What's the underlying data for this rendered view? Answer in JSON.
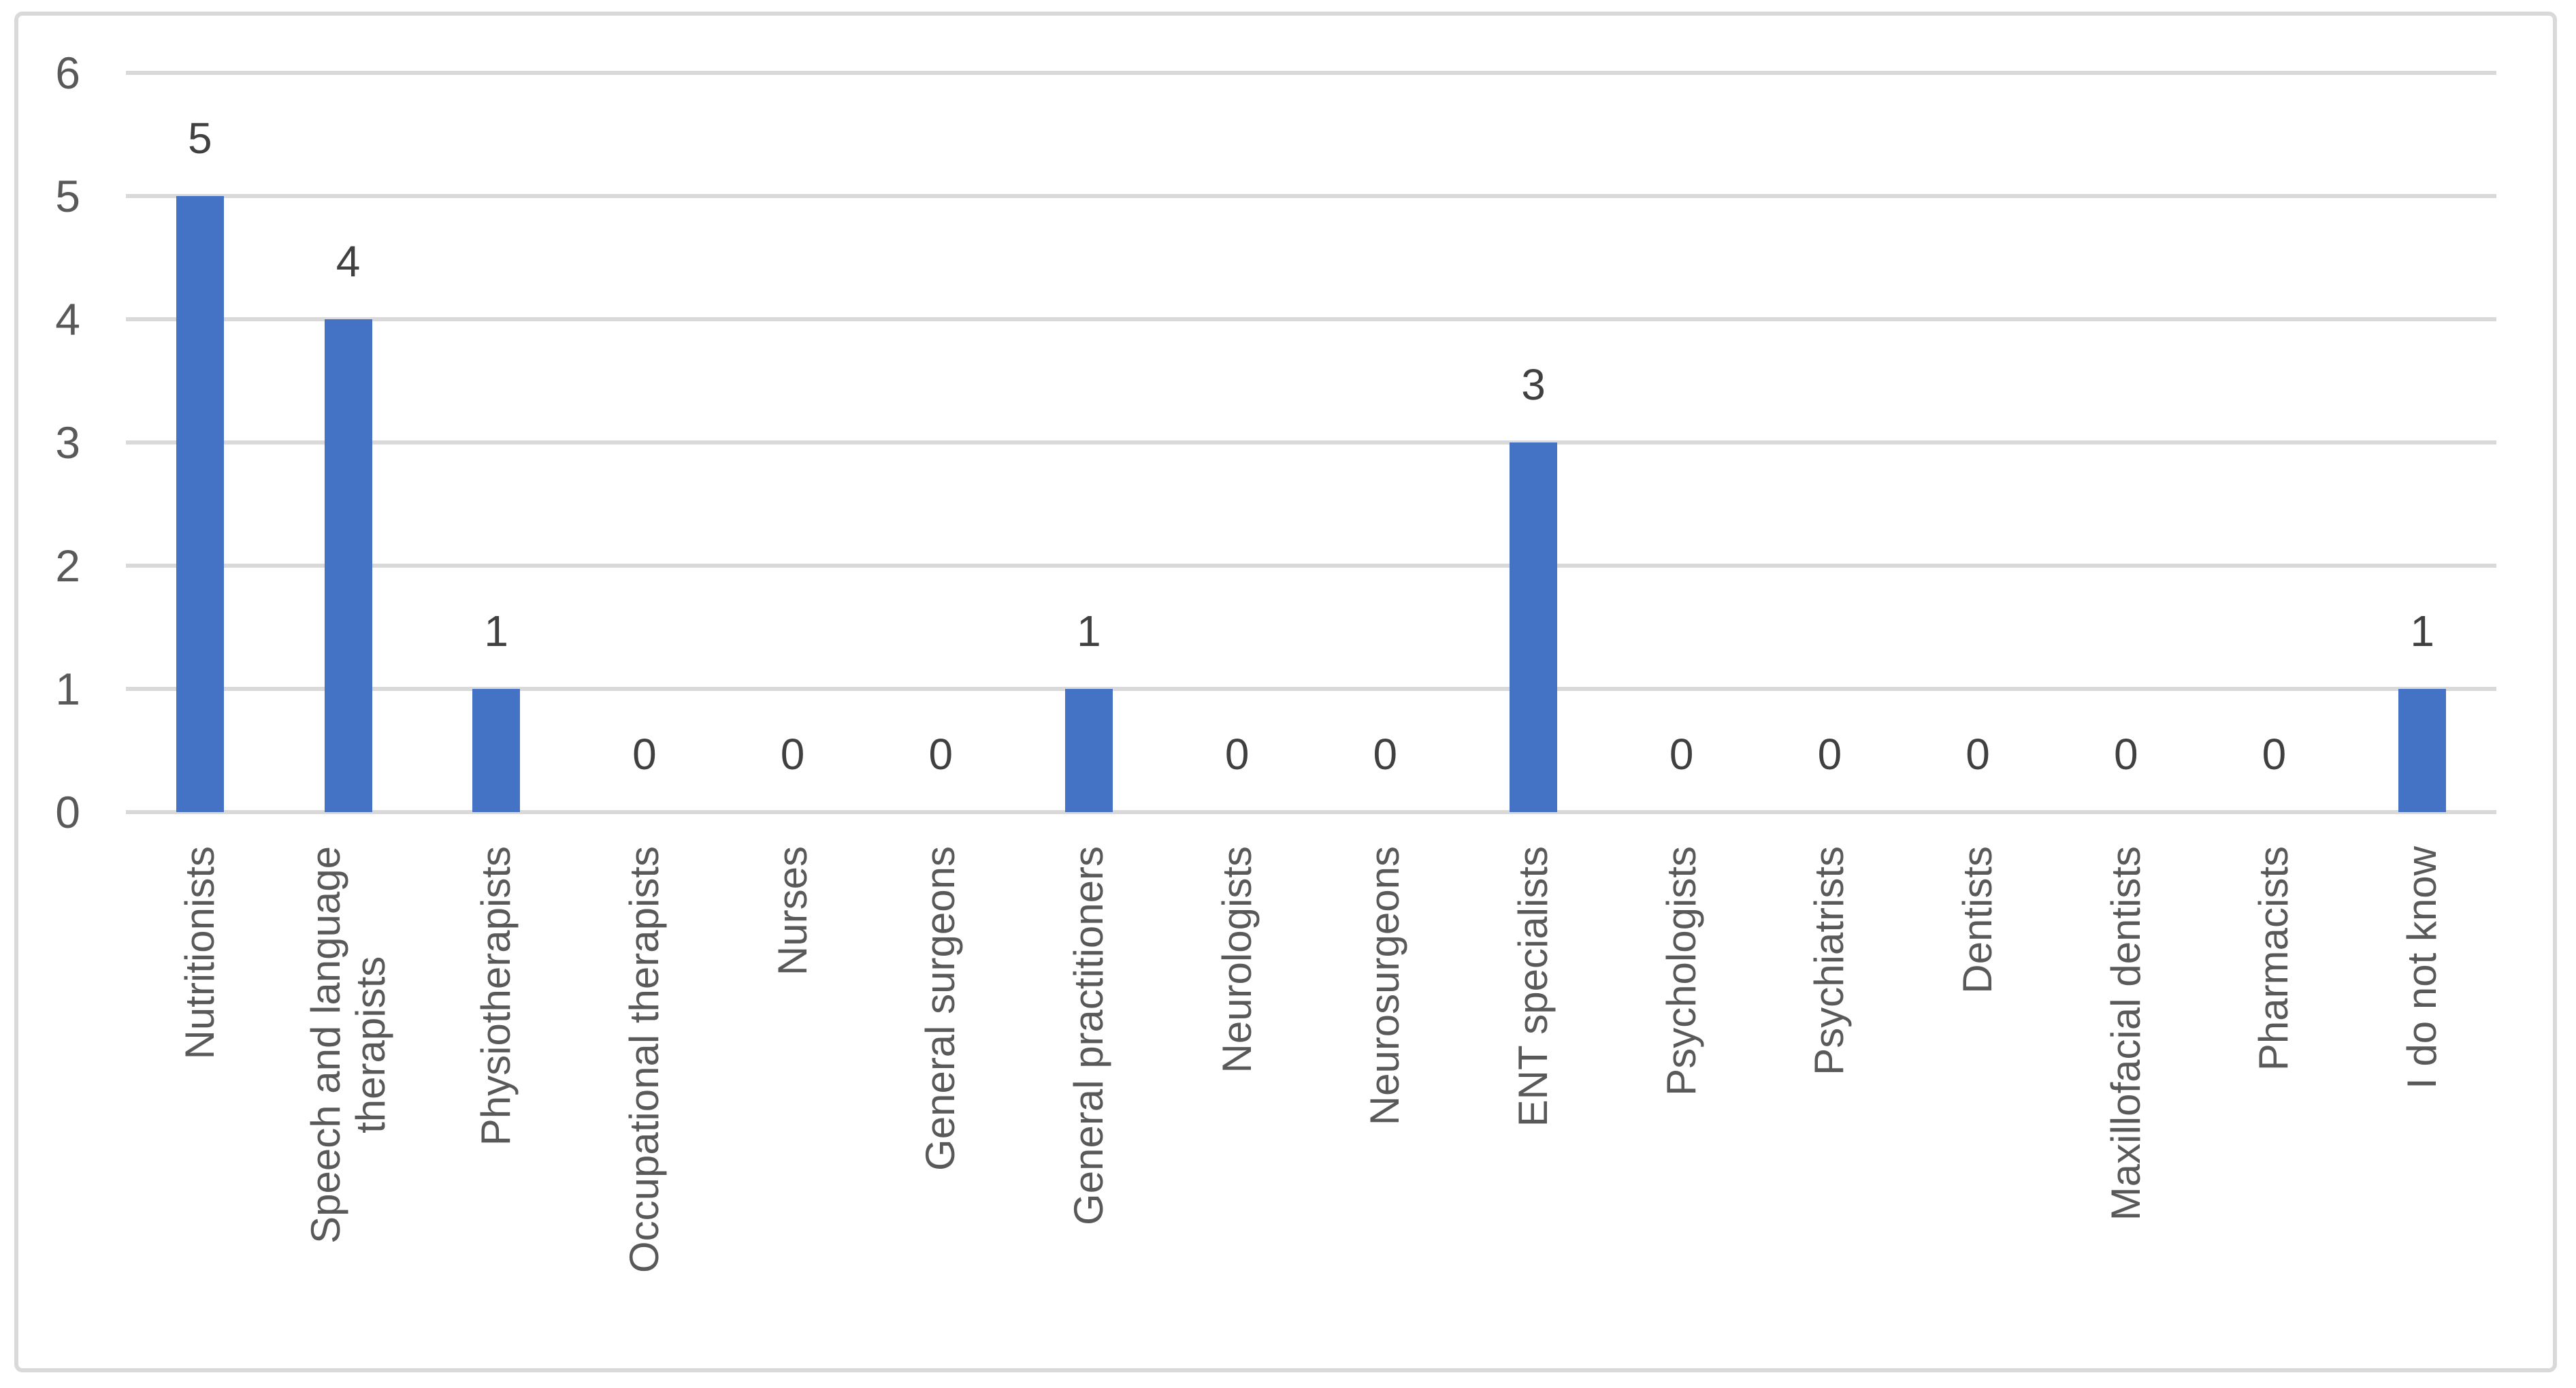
{
  "chart_data": {
    "type": "bar",
    "title": "",
    "xlabel": "",
    "ylabel": "",
    "categories": [
      "Nutritionists",
      "Speech and language\ntherapists",
      "Physiotherapists",
      "Occupational therapists",
      "Nurses",
      "General surgeons",
      "General practitioners",
      "Neurologists",
      "Neurosurgeons",
      "ENT specialists",
      "Psychologists",
      "Psychiatrists",
      "Dentists",
      "Maxillofacial dentists",
      "Pharmacists",
      "I do not know"
    ],
    "values": [
      5,
      4,
      1,
      0,
      0,
      0,
      1,
      0,
      0,
      3,
      0,
      0,
      0,
      0,
      0,
      1
    ],
    "data_labels": [
      "5",
      "4",
      "1",
      "0",
      "0",
      "0",
      "1",
      "0",
      "0",
      "3",
      "0",
      "0",
      "0",
      "0",
      "0",
      "1"
    ],
    "ylim": [
      0,
      6
    ],
    "yticks": [
      "0",
      "1",
      "2",
      "3",
      "4",
      "5",
      "6"
    ],
    "grid": true,
    "legend": false,
    "colors": {
      "bar": "#4472C4",
      "gridline": "#D9D9D9",
      "border": "#D9D9D9",
      "axis_text": "#595959",
      "data_label_text": "#404040",
      "background": "#FFFFFF"
    }
  }
}
